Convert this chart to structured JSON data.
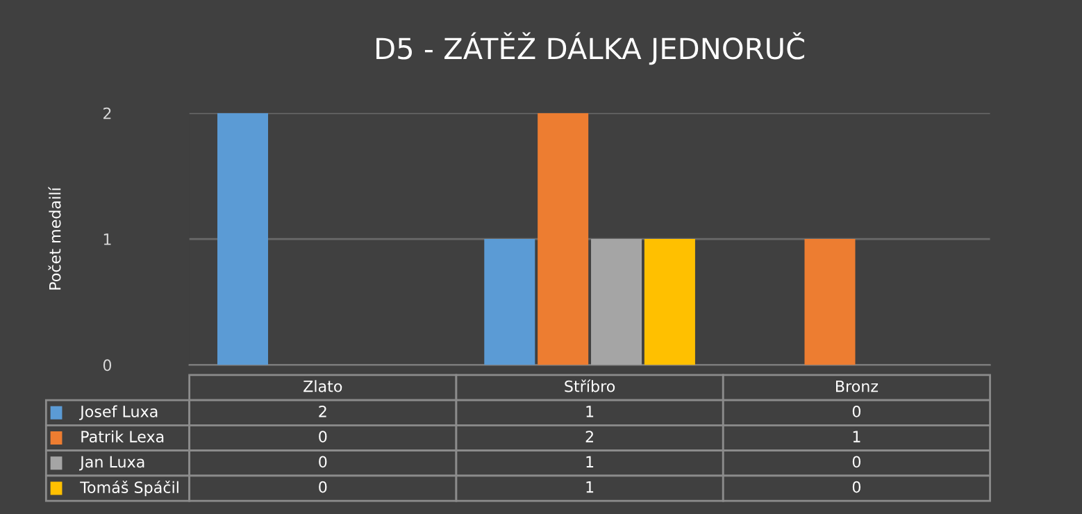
{
  "chart_data": {
    "type": "bar",
    "title": "D5 - ZÁTĚŽ DÁLKA JEDNORUČ",
    "ylabel": "Počet medailí",
    "categories": [
      "Zlato",
      "Stříbro",
      "Bronz"
    ],
    "series": [
      {
        "name": "Josef Luxa",
        "color": "#5b9bd5",
        "values": [
          2,
          1,
          0
        ]
      },
      {
        "name": "Patrik Lexa",
        "color": "#ed7d31",
        "values": [
          0,
          2,
          1
        ]
      },
      {
        "name": "Jan Luxa",
        "color": "#a5a5a5",
        "values": [
          0,
          1,
          0
        ]
      },
      {
        "name": "Tomáš Spáčil",
        "color": "#ffc000",
        "values": [
          0,
          1,
          0
        ]
      }
    ],
    "ylim": [
      0,
      2
    ],
    "yticks": [
      0,
      1,
      2
    ],
    "grid": "y",
    "data_labels": true,
    "legend": "bottom"
  }
}
